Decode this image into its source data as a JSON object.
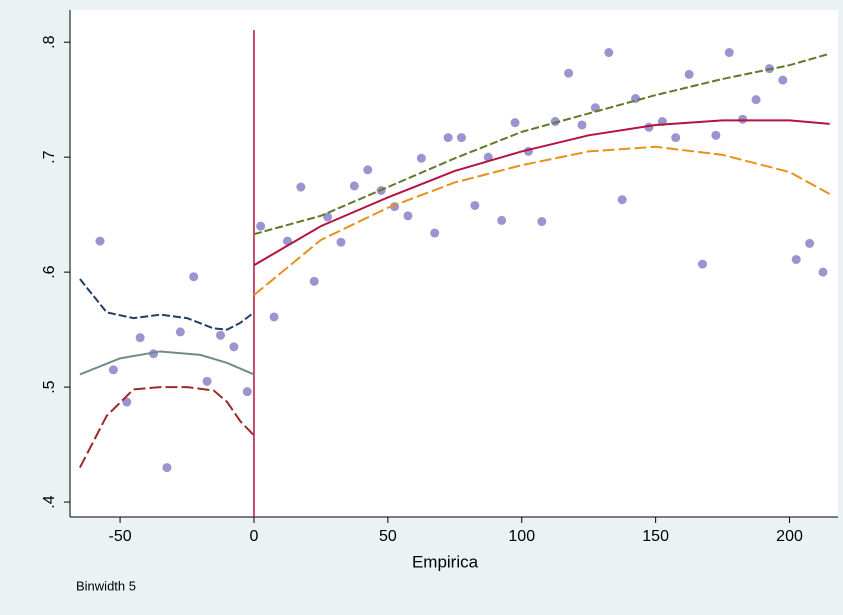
{
  "chart_data": {
    "type": "scatter",
    "x_label": "Empirica",
    "note": "Binwidth 5",
    "xlim": [
      -68.7,
      218.1
    ],
    "ylim": [
      0.387,
      0.828
    ],
    "xticks": [
      -50,
      0,
      50,
      100,
      150,
      200
    ],
    "yticks": [
      {
        "value": 0.4,
        "label": ".4"
      },
      {
        "value": 0.5,
        "label": ".5"
      },
      {
        "value": 0.6,
        "label": ".6"
      },
      {
        "value": 0.7,
        "label": ".7"
      },
      {
        "value": 0.8,
        "label": ".8"
      }
    ],
    "xline": 0,
    "xline_color": "#b5123f",
    "grid": false,
    "series": [
      {
        "type": "scatter",
        "color": "#9a94d0",
        "x": [
          -57.5,
          -52.5,
          -47.5,
          -42.5,
          -37.5,
          -32.5,
          -27.5,
          -22.5,
          -17.5,
          -12.5,
          -7.5,
          -2.5,
          2.5,
          7.5,
          12.5,
          17.5,
          22.5,
          27.5,
          32.5,
          37.5,
          42.5,
          47.5,
          52.5,
          57.5,
          62.5,
          67.5,
          72.5,
          77.5,
          82.5,
          87.5,
          92.5,
          97.5,
          102.5,
          107.5,
          112.5,
          117.5,
          122.5,
          127.5,
          132.5,
          137.5,
          142.5,
          147.5,
          152.5,
          157.5,
          162.5,
          167.5,
          172.5,
          177.5,
          182.5,
          187.5,
          192.5,
          197.5,
          202.5,
          207.5,
          212.5
        ],
        "values": [
          0.627,
          0.515,
          0.487,
          0.543,
          0.529,
          0.43,
          0.548,
          0.596,
          0.505,
          0.545,
          0.535,
          0.496,
          0.64,
          0.561,
          0.627,
          0.674,
          0.592,
          0.648,
          0.626,
          0.675,
          0.689,
          0.671,
          0.657,
          0.649,
          0.699,
          0.634,
          0.717,
          0.717,
          0.658,
          0.7,
          0.645,
          0.73,
          0.705,
          0.644,
          0.731,
          0.773,
          0.728,
          0.743,
          0.791,
          0.663,
          0.751,
          0.726,
          0.731,
          0.717,
          0.772,
          0.607,
          0.719,
          0.791,
          0.733,
          0.75,
          0.777,
          0.767,
          0.611,
          0.625,
          0.6
        ]
      },
      {
        "type": "line",
        "color": "#6f8d86",
        "dash": "none",
        "x": [
          -65,
          -50,
          -35,
          -20,
          -10,
          0
        ],
        "values": [
          0.511,
          0.525,
          0.531,
          0.528,
          0.521,
          0.511
        ]
      },
      {
        "type": "line",
        "color": "#1f3f66",
        "dash": "8 3",
        "x": [
          -65,
          -55,
          -45,
          -35,
          -25,
          -15,
          -10,
          -5,
          0
        ],
        "values": [
          0.594,
          0.565,
          0.56,
          0.563,
          0.56,
          0.551,
          0.55,
          0.556,
          0.565
        ]
      },
      {
        "type": "line",
        "color": "#9b2a2a",
        "dash": "12 4",
        "x": [
          -65,
          -55,
          -45,
          -35,
          -25,
          -15,
          -10,
          -5,
          0
        ],
        "values": [
          0.43,
          0.475,
          0.498,
          0.5,
          0.5,
          0.497,
          0.487,
          0.47,
          0.458
        ]
      },
      {
        "type": "line",
        "color": "#b5123f",
        "dash": "none",
        "x": [
          0,
          25,
          50,
          75,
          100,
          125,
          150,
          175,
          200,
          215
        ],
        "values": [
          0.606,
          0.64,
          0.665,
          0.688,
          0.705,
          0.719,
          0.728,
          0.732,
          0.732,
          0.729
        ]
      },
      {
        "type": "line",
        "color": "#5e7a2a",
        "dash": "8 3",
        "x": [
          0,
          25,
          50,
          75,
          100,
          125,
          150,
          175,
          200,
          215
        ],
        "values": [
          0.633,
          0.649,
          0.674,
          0.699,
          0.722,
          0.738,
          0.754,
          0.768,
          0.78,
          0.79
        ]
      },
      {
        "type": "line",
        "color": "#e8901e",
        "dash": "12 4",
        "x": [
          0,
          25,
          50,
          75,
          100,
          125,
          150,
          175,
          200,
          215
        ],
        "values": [
          0.58,
          0.628,
          0.656,
          0.678,
          0.693,
          0.705,
          0.709,
          0.702,
          0.687,
          0.668
        ]
      }
    ]
  }
}
